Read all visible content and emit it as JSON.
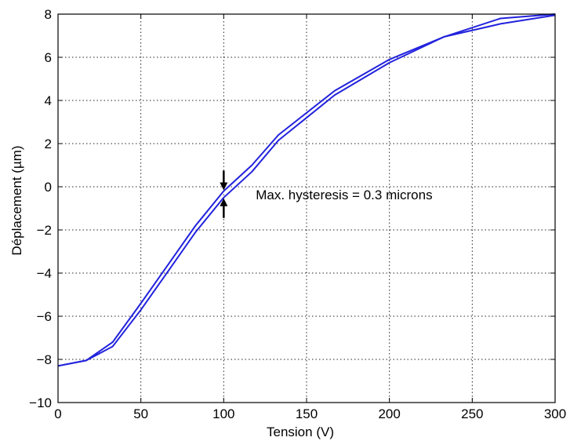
{
  "chart_data": {
    "type": "line",
    "title": "",
    "xlabel": "Tension (V)",
    "ylabel": "Déplacement (µm)",
    "xlim": [
      0,
      300
    ],
    "ylim": [
      -10,
      8
    ],
    "xticks": [
      "0",
      "50",
      "100",
      "150",
      "200",
      "250",
      "300"
    ],
    "yticks": [
      "8",
      "6",
      "4",
      "2",
      "0",
      "−2",
      "−4",
      "−6",
      "−8",
      "−10"
    ],
    "grid": true,
    "line_color": "#2222dd",
    "series": [
      {
        "x": [
          0,
          17,
          33,
          50,
          67,
          83,
          100,
          117,
          133,
          167,
          200,
          233,
          267,
          300
        ],
        "y": [
          -8.3,
          -8.05,
          -7.2,
          -5.4,
          -3.55,
          -1.8,
          -0.2,
          1.0,
          2.4,
          4.45,
          5.9,
          6.95,
          7.8,
          8.0
        ]
      },
      {
        "x": [
          0,
          17,
          33,
          50,
          67,
          83,
          100,
          117,
          133,
          167,
          200,
          233,
          267,
          300
        ],
        "y": [
          -8.3,
          -8.05,
          -7.4,
          -5.7,
          -3.85,
          -2.1,
          -0.5,
          0.7,
          2.15,
          4.25,
          5.75,
          6.95,
          7.55,
          7.95
        ]
      }
    ],
    "annotations": [
      {
        "text": "Max. hysteresis = 0.3 microns",
        "x": 117,
        "y": -0.5
      }
    ],
    "hysteresis_marker_x": 100
  }
}
